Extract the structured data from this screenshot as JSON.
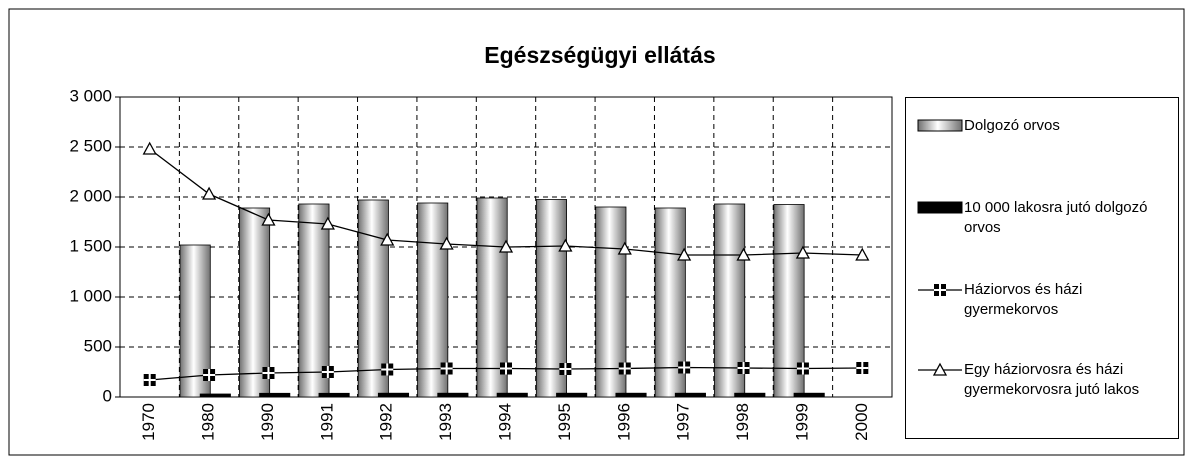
{
  "chart_data": {
    "type": "bar",
    "title": "Egészségügyi ellátás",
    "categories": [
      "1970",
      "1980",
      "1990",
      "1991",
      "1992",
      "1993",
      "1994",
      "1995",
      "1996",
      "1997",
      "1998",
      "1999",
      "2000"
    ],
    "series": [
      {
        "name": "Dolgozó orvos",
        "type": "bar",
        "color": "#a0a0a0",
        "values": [
          null,
          1520,
          1890,
          1930,
          1970,
          1940,
          1990,
          1975,
          1900,
          1890,
          1930,
          1925,
          null
        ]
      },
      {
        "name": "10 000 lakosra jutó dolgozó orvos",
        "type": "bar",
        "color": "#000000",
        "values": [
          null,
          30,
          37,
          37,
          38,
          38,
          38,
          38,
          38,
          38,
          38,
          38,
          null
        ]
      },
      {
        "name": "Háziorvos és házi gyermekorvos",
        "type": "line",
        "marker": "square",
        "color": "#000000",
        "values": [
          170,
          220,
          240,
          250,
          275,
          285,
          285,
          280,
          285,
          295,
          290,
          285,
          290
        ]
      },
      {
        "name": "Egy háziorvosra és házi gyermekorvosra jutó lakos",
        "type": "line",
        "marker": "triangle",
        "color": "#000000",
        "values": [
          2480,
          2030,
          1770,
          1730,
          1570,
          1530,
          1500,
          1510,
          1480,
          1420,
          1420,
          1440,
          1420
        ]
      }
    ],
    "ylim": [
      0,
      3000
    ],
    "yticks": [
      0,
      500,
      {
        "value": 1000,
        "label": "1 000"
      },
      {
        "value": 1500,
        "label": "1 500"
      },
      {
        "value": 2000,
        "label": "2 000"
      },
      {
        "value": 2500,
        "label": "2 500"
      },
      {
        "value": 3000,
        "label": "3 000"
      }
    ],
    "grid": true,
    "legend": "right"
  }
}
